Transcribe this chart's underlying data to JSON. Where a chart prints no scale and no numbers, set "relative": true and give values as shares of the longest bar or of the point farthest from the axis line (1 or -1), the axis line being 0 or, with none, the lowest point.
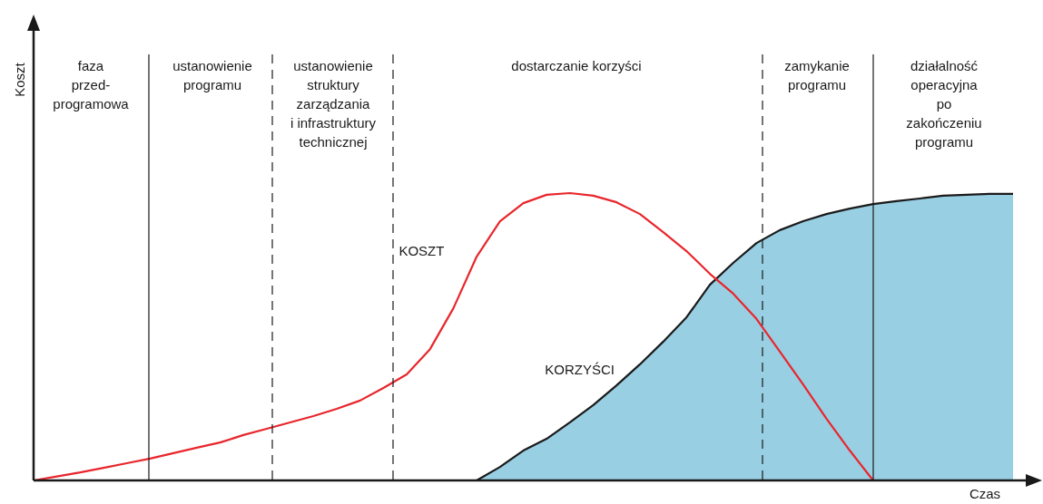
{
  "chart_data": {
    "type": "line",
    "relative": true,
    "xlabel": "Czas",
    "categories": [
      null,
      null,
      null,
      null,
      null,
      null,
      null,
      null,
      null,
      null,
      null,
      null,
      null,
      null,
      null,
      null,
      null,
      null,
      null,
      null,
      null,
      null,
      null,
      null,
      null,
      null,
      null,
      null,
      null,
      null,
      null,
      null,
      null,
      null,
      null,
      null,
      null,
      null,
      null,
      null,
      null,
      null,
      null
    ],
    "series": [
      {
        "name": "KOSZT",
        "color": "#e8262c",
        "values": [
          0,
          0.014,
          0.028,
          0.044,
          0.06,
          0.076,
          0.095,
          0.114,
          0.132,
          0.158,
          0.18,
          0.202,
          0.224,
          0.249,
          0.278,
          0.322,
          0.369,
          0.457,
          0.599,
          0.779,
          0.902,
          0.965,
          0.994,
          1.0,
          0.991,
          0.968,
          0.927,
          0.864,
          0.798,
          0.719,
          0.65,
          0.562,
          0.448,
          0.334,
          0.215,
          0.104,
          0,
          null,
          null,
          null,
          null,
          null,
          null
        ]
      },
      {
        "name": "KORZYŚCI",
        "type": "area",
        "color": "#99cfe3",
        "values": [
          null,
          null,
          null,
          null,
          null,
          null,
          null,
          null,
          null,
          null,
          null,
          null,
          null,
          null,
          null,
          null,
          null,
          null,
          null,
          0,
          0.047,
          0.104,
          0.145,
          0.202,
          0.262,
          0.331,
          0.404,
          0.483,
          0.568,
          0.681,
          0.757,
          0.826,
          0.871,
          0.902,
          0.927,
          0.946,
          0.962,
          0.972,
          0.981,
          0.991,
          0.994,
          0.997,
          0.997
        ]
      }
    ],
    "annotations": [
      "Koszt",
      "faza\nprzed-\nprogramowa",
      "ustanowienie\nprogramu",
      "ustanowienie\nstruktury\nzarządzania\ni infrastruktury\ntechnicznej",
      "dostarczanie korzyści",
      "zamykanie\nprogramu",
      "działalność\noperacyjna\npo\nzakończeniu\nprogramu"
    ]
  }
}
